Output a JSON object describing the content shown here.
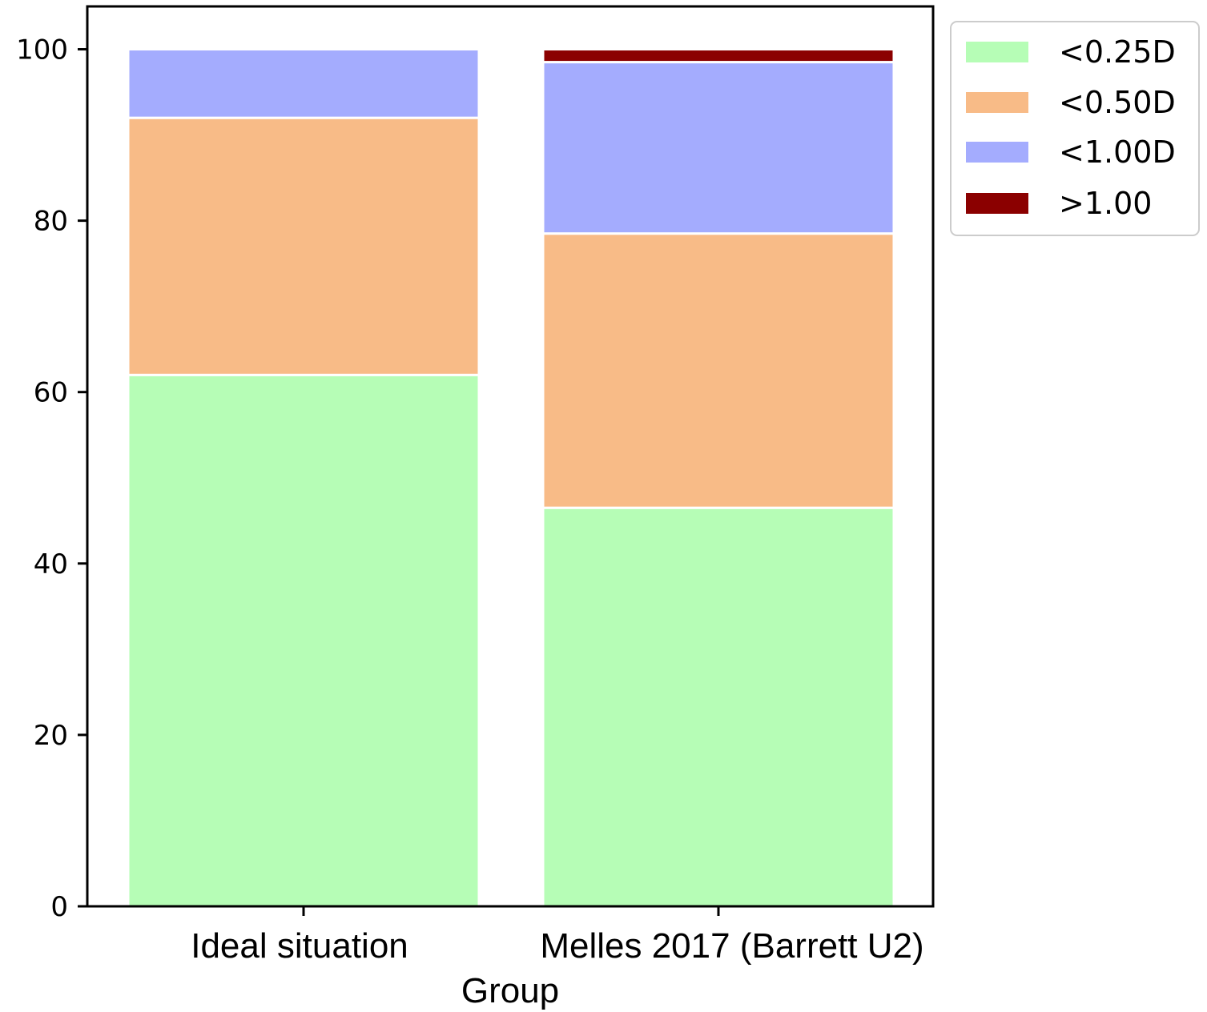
{
  "chart_data": {
    "type": "bar",
    "stacked": true,
    "categories": [
      "Ideal situation",
      "Melles 2017 (Barrett U2)"
    ],
    "series": [
      {
        "name": "<0.25D",
        "color": "#b6fdb6",
        "values": [
          62,
          46.5
        ]
      },
      {
        "name": "<0.50D",
        "color": "#f8bb87",
        "values": [
          30,
          32
        ]
      },
      {
        "name": "<1.00D",
        "color": "#a4acfe",
        "values": [
          8,
          20
        ]
      },
      {
        "name": ">1.00",
        "color": "#8b0000",
        "values": [
          0,
          1.5
        ]
      }
    ],
    "title": "",
    "xlabel": "Group",
    "ylabel": "",
    "ylim": [
      0,
      105
    ],
    "yticks": [
      0,
      20,
      40,
      60,
      80,
      100
    ],
    "grid": false,
    "legend_position": "outside-top-right"
  }
}
